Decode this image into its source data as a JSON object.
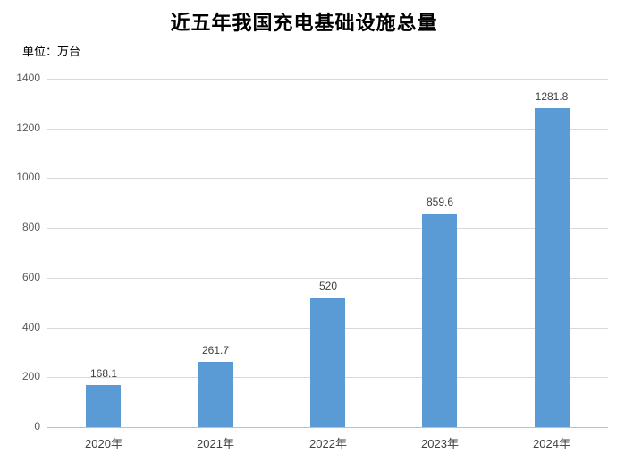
{
  "page": {
    "background": "#ffffff"
  },
  "chart_data": {
    "type": "bar",
    "title": "近五年我国充电基础设施总量",
    "unit": "单位：万台",
    "categories": [
      "2020年",
      "2021年",
      "2022年",
      "2023年",
      "2024年"
    ],
    "values": [
      168.1,
      261.7,
      520,
      859.6,
      1281.8
    ],
    "value_labels": [
      "168.1",
      "261.7",
      "520",
      "859.6",
      "1281.8"
    ],
    "xlabel": "",
    "ylabel": "",
    "ylim": [
      0,
      1400
    ],
    "yticks": [
      0,
      200,
      400,
      600,
      800,
      1000,
      1200,
      1400
    ],
    "grid": true,
    "legend": "none",
    "colors": {
      "bar": "#5b9bd5",
      "gridline": "#d9d9d9",
      "axis_line": "#bfbfbf",
      "tick_label": "#595959",
      "value_label": "#404040",
      "title": "#000000",
      "background": "#ffffff"
    }
  }
}
